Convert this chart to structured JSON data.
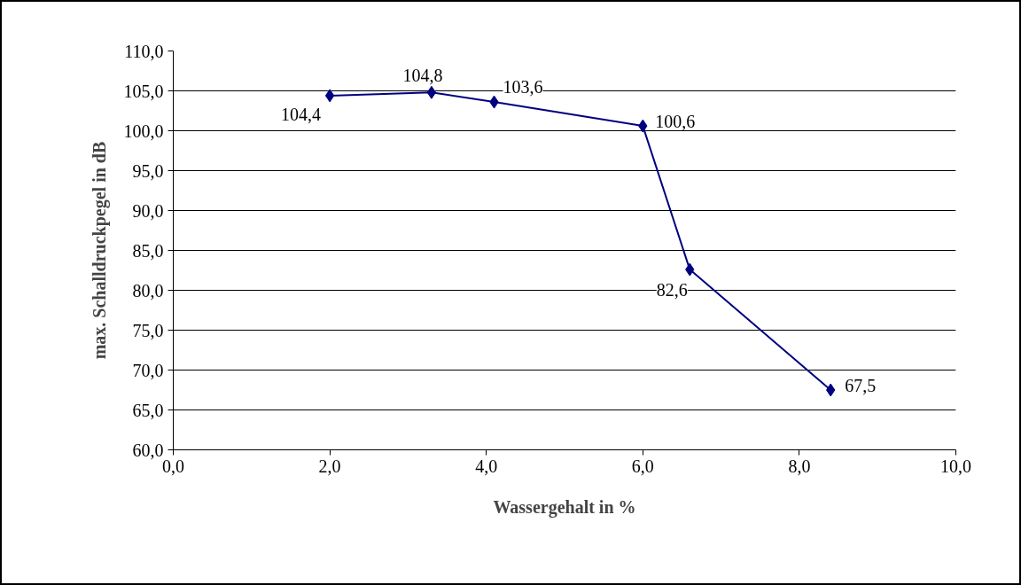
{
  "chart_data": {
    "type": "line",
    "xlabel": "Wassergehalt in %",
    "ylabel": "max. Schalldruckpegel in dB",
    "x": [
      2.0,
      3.3,
      4.1,
      6.0,
      6.6,
      8.4
    ],
    "series": [
      {
        "color": "#000080",
        "values": [
          104.4,
          104.8,
          103.6,
          100.6,
          82.6,
          67.5
        ],
        "value_labels": [
          "104,4",
          "104,8",
          "103,6",
          "100,6",
          "82,6",
          "67,5"
        ]
      }
    ],
    "marker": "diamond",
    "line_style": "solid",
    "grid": "y",
    "xlim": [
      0,
      10
    ],
    "xticks": [
      {
        "value": 0,
        "label": "0,0"
      },
      {
        "value": 2,
        "label": "2,0"
      },
      {
        "value": 4,
        "label": "4,0"
      },
      {
        "value": 6,
        "label": "6,0"
      },
      {
        "value": 8,
        "label": "8,0"
      },
      {
        "value": 10,
        "label": "10,0"
      }
    ],
    "ylim": [
      60,
      110
    ],
    "yticks": [
      {
        "value": 60,
        "label": "60,0"
      },
      {
        "value": 65,
        "label": "65,0"
      },
      {
        "value": 70,
        "label": "70,0"
      },
      {
        "value": 75,
        "label": "75,0"
      },
      {
        "value": 80,
        "label": "80,0"
      },
      {
        "value": 85,
        "label": "85,0"
      },
      {
        "value": 90,
        "label": "90,0"
      },
      {
        "value": 95,
        "label": "95,0"
      },
      {
        "value": 100,
        "label": "100,0"
      },
      {
        "value": 105,
        "label": "105,0"
      },
      {
        "value": 110,
        "label": "110,0"
      }
    ]
  }
}
